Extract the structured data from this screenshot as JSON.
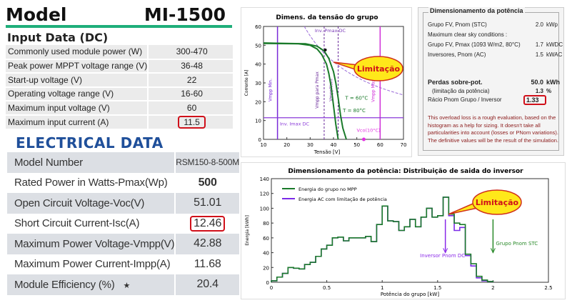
{
  "left": {
    "model_label": "Model",
    "model_value": "MI-1500",
    "input_title": "Input Data (DC)",
    "input_rows": [
      {
        "label": "Commonly used module power (W)",
        "value": "300-470"
      },
      {
        "label": "Peak power MPPT voltage range (V)",
        "value": "36-48"
      },
      {
        "label": "Start-up voltage (V)",
        "value": "22"
      },
      {
        "label": "Operating voltage range (V)",
        "value": "16-60"
      },
      {
        "label": "Maximum input voltage (V)",
        "value": "60"
      },
      {
        "label": "Maximum input current (A)",
        "value": "11.5"
      }
    ],
    "electrical_title": "ELECTRICAL DATA",
    "electrical_rows": [
      {
        "label": "Model Number",
        "value": "RSM150-8-500M"
      },
      {
        "label": "Rated Power in Watts-Pmax(Wp)",
        "value": "500"
      },
      {
        "label": "Open Circuit Voltage-Voc(V)",
        "value": "51.01"
      },
      {
        "label": "Short Circuit Current-Isc(A)",
        "value": "12.46"
      },
      {
        "label": "Maximum Power Voltage-Vmpp(V)",
        "value": "42.88"
      },
      {
        "label": "Maximum Power Current-Impp(A)",
        "value": "11.68"
      },
      {
        "label": "Module Efficiency (%)",
        "value": "20.4",
        "mark": "★"
      }
    ]
  },
  "power_box": {
    "title": "Dimensionamento da potência",
    "rows": [
      {
        "label": "Grupo FV, Pnom (STC)",
        "value": "2.0",
        "unit": "kWp"
      },
      {
        "label": "Maximum clear sky conditions :",
        "value": "",
        "unit": ""
      },
      {
        "label": "Grupo FV, Pmax (1093 W/m2, 80°C)",
        "value": "1.7",
        "unit": "kWDC"
      },
      {
        "label": "Inversores, Pnom (AC)",
        "value": "1.5",
        "unit": "kWAC"
      }
    ],
    "losses_label": "Perdas sobre-pot.",
    "losses_value": "50.0",
    "losses_unit": "kWh",
    "limit_label": "(limitação da potência)",
    "limit_value": "1.3",
    "limit_unit": "%",
    "ratio_label": "Rácio Pnom Grupo / Inversor",
    "ratio_value": "1.33",
    "note1": "This overload loss is a rough evaluation, based on the histogram as a help for sizing. It doesn't take all particularities into account (losses or PNom variations).",
    "note2": "The definitive values will be the result of the simulation."
  },
  "chart_data": [
    {
      "type": "line",
      "title": "Dimens. da tensão do grupo",
      "xlabel": "Tensão [V]",
      "ylabel": "Corrente [A]",
      "xlim": [
        10,
        70
      ],
      "ylim": [
        0,
        60
      ],
      "xticks": [
        10,
        20,
        30,
        40,
        50,
        60,
        70
      ],
      "yticks": [
        0,
        10,
        20,
        30,
        40,
        50,
        60
      ],
      "series": [
        {
          "name": "T = 60°C",
          "color": "#1a7a2a",
          "points": [
            [
              10,
              51.2
            ],
            [
              28,
              50.8
            ],
            [
              33,
              49.5
            ],
            [
              36,
              47
            ],
            [
              38,
              43
            ],
            [
              40,
              36
            ],
            [
              41,
              30
            ],
            [
              42,
              22
            ],
            [
              43,
              13
            ],
            [
              44,
              6
            ],
            [
              45.5,
              0
            ]
          ]
        },
        {
          "name": "T = 80°C",
          "color": "#1a7a2a",
          "points": [
            [
              10,
              51
            ],
            [
              25,
              50.8
            ],
            [
              30,
              50
            ],
            [
              33,
              48
            ],
            [
              35,
              45
            ],
            [
              37,
              40
            ],
            [
              38,
              35
            ],
            [
              39,
              28
            ],
            [
              40,
              18
            ],
            [
              41,
              8
            ],
            [
              42,
              0
            ]
          ]
        }
      ],
      "pmax_curve": {
        "label": "Inv. Pmax DC",
        "power_w": 1650,
        "color": "#9a6ad8"
      },
      "vlines": [
        {
          "label": "Vmpp Min.",
          "x": 16,
          "color": "#7a2ad8",
          "style": "solid"
        },
        {
          "label": "Vmpp para Pmax",
          "x": 36,
          "color": "#6a2a9a",
          "style": "dashed"
        },
        {
          "label": "VmppNom",
          "x": 42,
          "color": "#6a2a9a",
          "style": "dashed"
        },
        {
          "label": "Vmpp Max.",
          "x": 60,
          "color": "#d030d8",
          "style": "solid"
        }
      ],
      "hline": {
        "label": "Inv. Imax DC",
        "y": 11.5,
        "color": "#8a3ad8"
      },
      "voc_point": {
        "label": "Vco(10°C)",
        "x": 53,
        "y": 0,
        "color": "#e030e0"
      },
      "mpp_point": [
        36.5,
        47.5
      ],
      "callout": "Limitação"
    },
    {
      "type": "step",
      "title": "Dimensionamento da potência: Distribuição de saida do inversor",
      "xlabel": "Potência do grupo [kW]",
      "ylabel": "Energia [kWh]",
      "xlim": [
        0,
        2.5
      ],
      "ylim": [
        0,
        140
      ],
      "xticks": [
        0.0,
        0.5,
        1.0,
        1.5,
        2.0,
        2.5
      ],
      "yticks": [
        0,
        20,
        40,
        60,
        80,
        100,
        120,
        140
      ],
      "bin_width": 0.05,
      "bins_start": [
        0,
        0.05,
        0.1,
        0.15,
        0.2,
        0.25,
        0.3,
        0.35,
        0.4,
        0.45,
        0.5,
        0.55,
        0.6,
        0.65,
        0.7,
        0.75,
        0.8,
        0.85,
        0.9,
        0.95,
        1.0,
        1.05,
        1.1,
        1.15,
        1.2,
        1.25,
        1.3,
        1.35,
        1.4,
        1.45,
        1.5,
        1.55,
        1.6,
        1.65,
        1.7,
        1.75,
        1.8,
        1.85,
        1.9,
        1.95
      ],
      "series": [
        {
          "name": "Energia do grupo no MPP",
          "color": "#1a7a2a",
          "values": [
            2,
            7,
            12,
            20,
            19,
            18,
            24,
            27,
            35,
            45,
            50,
            60,
            61,
            56,
            60,
            60,
            60,
            62,
            55,
            78,
            103,
            83,
            82,
            70,
            75,
            85,
            75,
            88,
            100,
            88,
            90,
            115,
            92,
            80,
            78,
            38,
            25,
            8,
            3,
            1
          ]
        },
        {
          "name": "Energia AC com limitação de potência",
          "color": "#7a2ae8",
          "values": [
            2,
            7,
            12,
            20,
            19,
            18,
            24,
            27,
            35,
            45,
            50,
            60,
            61,
            56,
            60,
            60,
            60,
            62,
            55,
            78,
            103,
            83,
            82,
            70,
            75,
            85,
            75,
            88,
            100,
            88,
            90,
            115,
            90,
            70,
            74,
            36,
            22,
            6,
            2,
            1
          ]
        }
      ],
      "markers": [
        {
          "label": "Inversor Pnom DC",
          "x": 1.57,
          "color": "#8a2ae8"
        },
        {
          "label": "Grupo Pnom STC",
          "x": 2.0,
          "color": "#2a8a2a"
        }
      ],
      "callout": "Limitação"
    }
  ]
}
